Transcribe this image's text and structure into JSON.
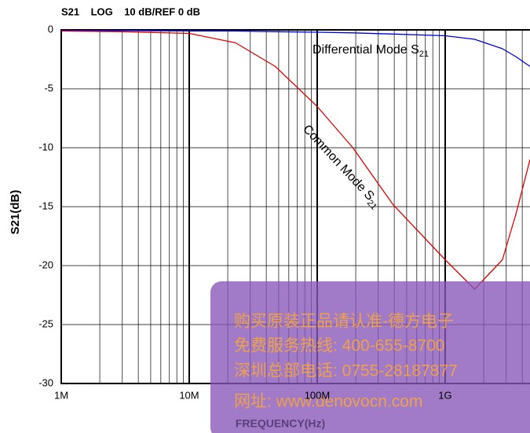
{
  "chart_data": {
    "type": "line",
    "header": "S21    LOG    10 dB/REF 0 dB",
    "ylabel": "S21(dB)",
    "xlabel": "FREQUENCY(Hz)",
    "log_x": true,
    "grid": true,
    "xlim": [
      1000000,
      4600000000
    ],
    "ylim": [
      -30,
      0
    ],
    "xticks": [
      {
        "value": 1000000,
        "label": "1M"
      },
      {
        "value": 10000000,
        "label": "10M"
      },
      {
        "value": 100000000,
        "label": "100M"
      },
      {
        "value": 1000000000,
        "label": "1G"
      }
    ],
    "yticks": [
      0,
      -5,
      -10,
      -15,
      -20,
      -25,
      -30
    ],
    "x": [
      1000000,
      3000000,
      10000000,
      23000000,
      47000000,
      100000000,
      190000000,
      390000000,
      1000000000,
      1700000000,
      2800000000,
      3600000000,
      4600000000
    ],
    "series": [
      {
        "name": "Differential Mode",
        "color": "#0000dd",
        "values": [
          -0.05,
          -0.05,
          -0.1,
          -0.1,
          -0.15,
          -0.2,
          -0.25,
          -0.35,
          -0.5,
          -0.8,
          -1.6,
          -2.3,
          -3.1
        ]
      },
      {
        "name": "Common Mode",
        "color": "#e00000",
        "values": [
          -0.1,
          -0.15,
          -0.3,
          -1.1,
          -3.1,
          -6.5,
          -10,
          -14.8,
          -19.5,
          -22,
          -19.5,
          -15.5,
          -11
        ]
      }
    ],
    "annotations": [
      {
        "text": "Differential Mode S",
        "sub": "21"
      },
      {
        "text": "Common Mode S",
        "sub": "21"
      }
    ],
    "watermark": [
      "购买原装正品请认准-德方电子",
      "免费服务热线: 400-655-8700",
      "深圳总部电话: 0755-28187877",
      "网址: www.denovocn.com"
    ]
  }
}
